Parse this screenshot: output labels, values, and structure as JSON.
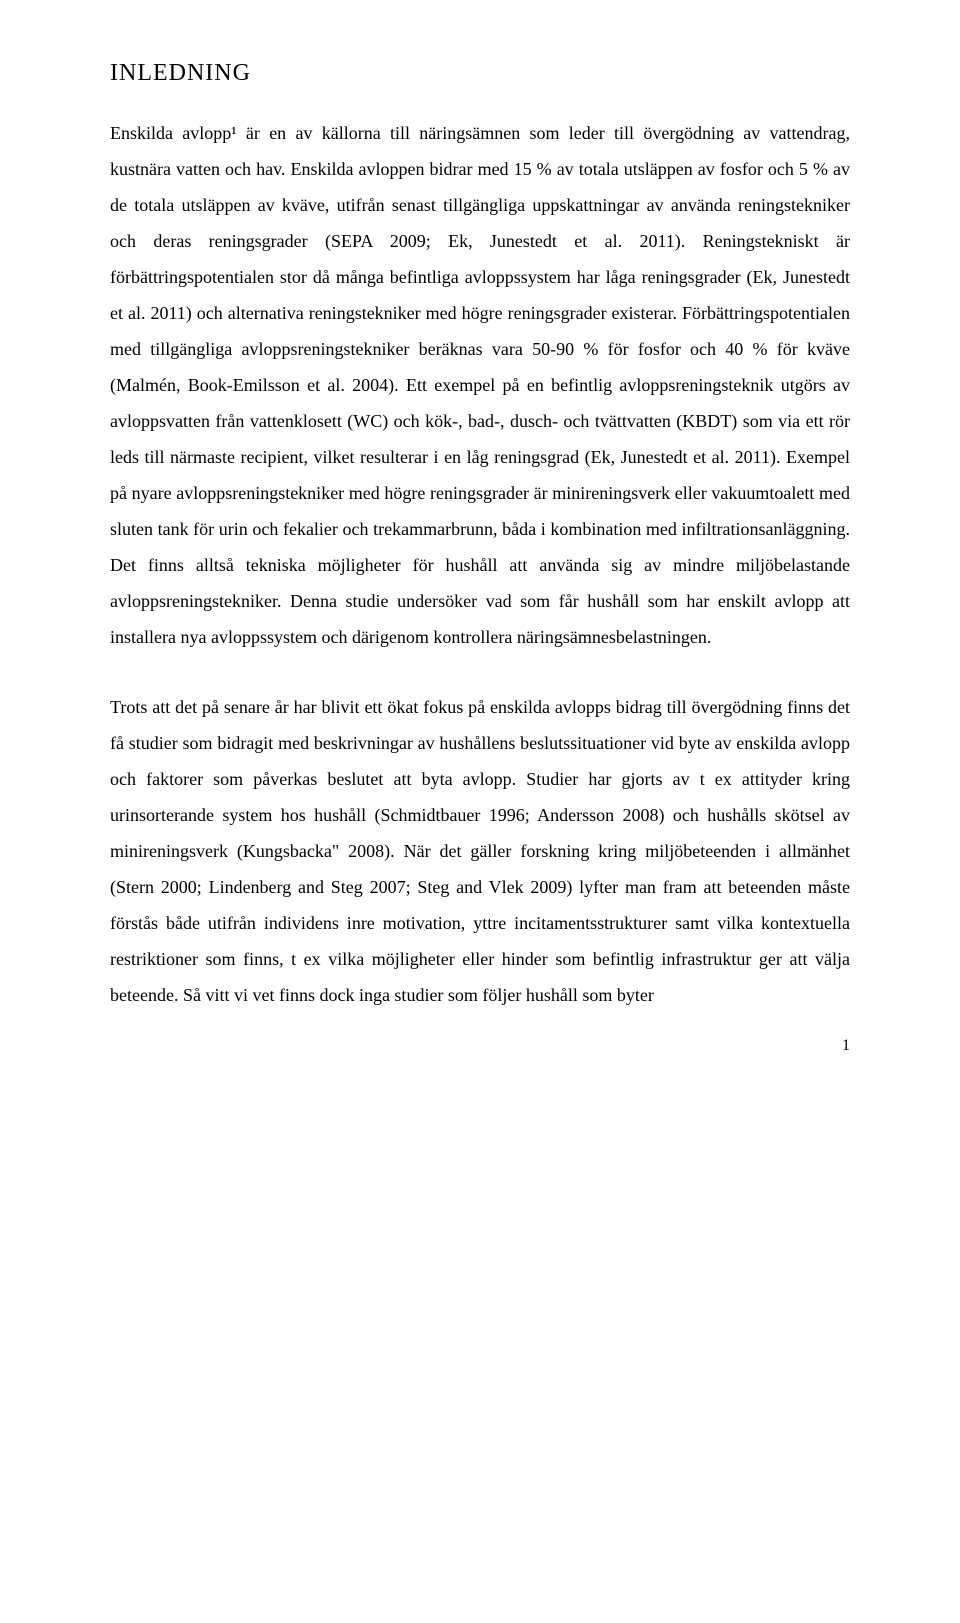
{
  "heading": "INLEDNING",
  "paragraphs": [
    "Enskilda avlopp¹ är en av källorna till näringsämnen som leder till övergödning av vattendrag, kustnära vatten och hav. Enskilda avloppen bidrar med 15 % av totala utsläppen av fosfor och 5 % av de totala utsläppen av kväve, utifrån senast tillgängliga uppskattningar av använda reningstekniker och deras reningsgrader (SEPA 2009; Ek, Junestedt et al. 2011). Reningstekniskt är förbättringspotentialen stor då många befintliga avloppssystem har låga reningsgrader (Ek, Junestedt et al. 2011) och alternativa reningstekniker med högre reningsgrader existerar. Förbättringspotentialen med tillgängliga avloppsreningstekniker beräknas vara 50-90 % för fosfor och 40 % för kväve (Malmén, Book-Emilsson et al. 2004). Ett exempel på en befintlig avloppsreningsteknik utgörs av avloppsvatten från vattenklosett (WC) och kök-, bad-, dusch- och tvättvatten (KBDT) som via ett rör leds till närmaste recipient, vilket resulterar i en låg reningsgrad (Ek, Junestedt et al. 2011). Exempel på nyare avloppsreningstekniker med högre reningsgrader är minireningsverk eller vakuumtoalett med sluten tank för urin och fekalier och trekammarbrunn, båda i kombination med infiltrationsanläggning. Det finns alltså tekniska möjligheter för hushåll att använda sig av mindre miljöbelastande avloppsreningstekniker. Denna studie undersöker vad som får hushåll som har enskilt avlopp att installera nya avloppssystem och därigenom kontrollera näringsämnesbelastningen.",
    "Trots att det på senare år har blivit ett ökat fokus på enskilda avlopps bidrag till övergödning finns det få studier som bidragit med beskrivningar av hushållens beslutssituationer vid byte av enskilda avlopp och faktorer som påverkas beslutet att byta avlopp. Studier har gjorts av t ex attityder kring urinsorterande system hos hushåll (Schmidtbauer 1996; Andersson 2008) och hushålls skötsel av minireningsverk (Kungsbacka\" 2008). När det gäller forskning kring miljöbeteenden i allmänhet (Stern 2000; Lindenberg and Steg 2007; Steg and Vlek 2009) lyfter man fram att beteenden måste förstås både utifrån individens inre motivation, yttre incitamentsstrukturer samt vilka kontextuella restriktioner som finns, t ex vilka möjligheter eller hinder som befintlig infrastruktur ger att välja beteende. Så vitt vi vet finns dock inga studier som följer hushåll som byter"
  ],
  "pageNumber": "1"
}
